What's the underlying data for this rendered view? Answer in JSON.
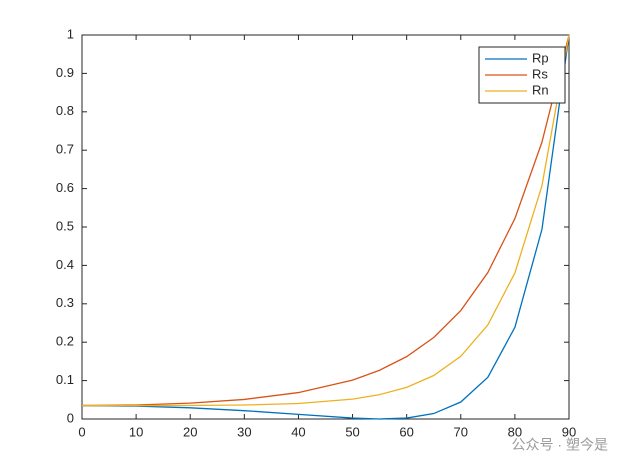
{
  "chart_data": {
    "type": "line",
    "x": [
      0,
      10,
      20,
      30,
      40,
      50,
      55,
      60,
      65,
      70,
      75,
      80,
      85,
      90
    ],
    "series": [
      {
        "name": "Rp",
        "color": "#0072bd",
        "values": [
          0.035,
          0.0335,
          0.0291,
          0.0217,
          0.012,
          0.0024,
          0,
          0.0024,
          0.0142,
          0.0442,
          0.1086,
          0.2387,
          0.4938,
          1
        ]
      },
      {
        "name": "Rs",
        "color": "#d95319",
        "values": [
          0.035,
          0.0365,
          0.0413,
          0.051,
          0.0688,
          0.1012,
          0.127,
          0.1624,
          0.2122,
          0.2824,
          0.3814,
          0.5219,
          0.721,
          1
        ]
      },
      {
        "name": "Rn",
        "color": "#edb120",
        "values": [
          0.035,
          0.035,
          0.0352,
          0.0364,
          0.0404,
          0.0518,
          0.0635,
          0.0824,
          0.1132,
          0.1633,
          0.245,
          0.3803,
          0.6074,
          1
        ]
      }
    ],
    "xlim": [
      0,
      90
    ],
    "xticks": [
      0,
      10,
      20,
      30,
      40,
      50,
      60,
      70,
      80,
      90
    ],
    "ylim": [
      0,
      1
    ],
    "yticks": [
      0,
      0.1,
      0.2,
      0.3,
      0.4,
      0.5,
      0.6,
      0.7,
      0.8,
      0.9,
      1
    ],
    "grid": false,
    "legend_position": "top-right",
    "watermark": "公众号 · 塑今是"
  }
}
